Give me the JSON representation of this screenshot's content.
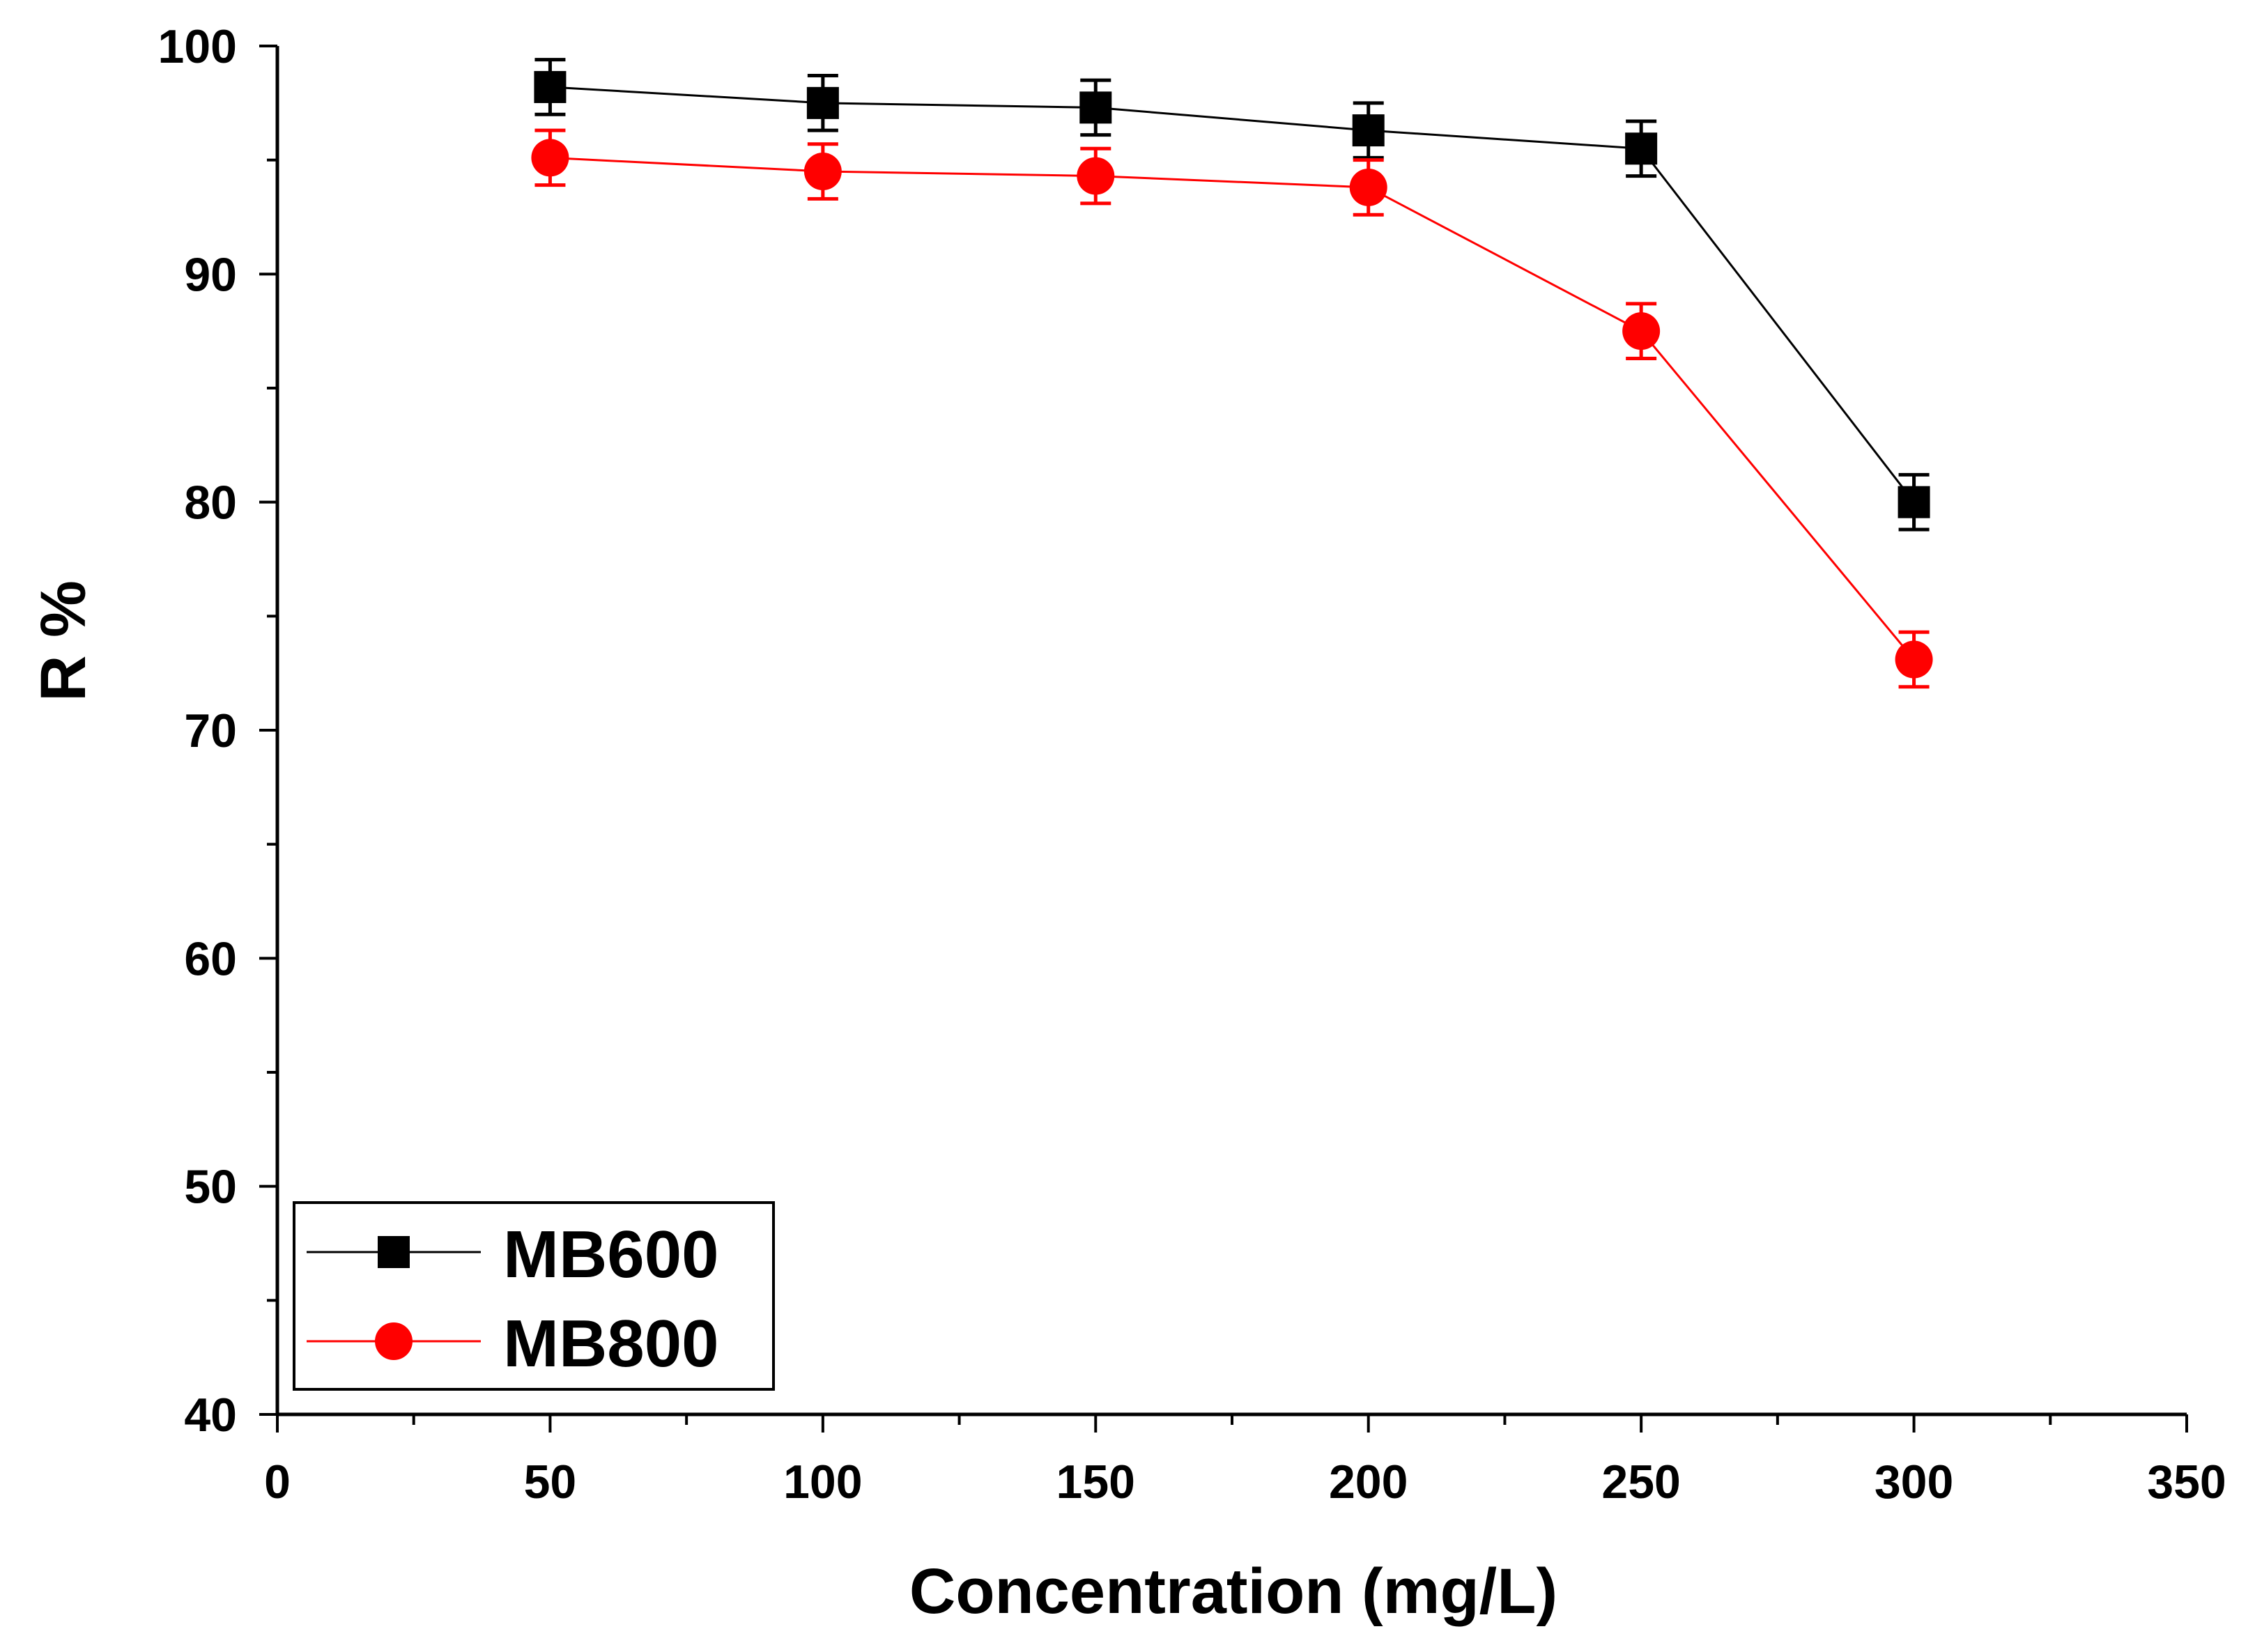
{
  "chart_data": {
    "type": "line",
    "title": "",
    "xlabel": "Concentration (mg/L)",
    "ylabel": "R %",
    "xlim": [
      0,
      350
    ],
    "ylim": [
      40,
      100
    ],
    "x_ticks": [
      0,
      50,
      100,
      150,
      200,
      250,
      300,
      350
    ],
    "y_ticks": [
      40,
      50,
      60,
      70,
      80,
      90,
      100
    ],
    "x_tick_labels": [
      "0",
      "50",
      "100",
      "150",
      "200",
      "250",
      "300",
      "350"
    ],
    "y_tick_labels": [
      "40",
      "50",
      "60",
      "70",
      "80",
      "90",
      "100"
    ],
    "grid": false,
    "legend_position": "bottom-left",
    "x": [
      50,
      100,
      150,
      200,
      250,
      300
    ],
    "series": [
      {
        "name": "MB600",
        "color": "#000000",
        "marker": "square",
        "values": [
          98.2,
          97.5,
          97.3,
          96.3,
          95.5,
          80.0
        ],
        "errors": [
          1.2,
          1.2,
          1.2,
          1.2,
          1.2,
          1.2
        ]
      },
      {
        "name": "MB800",
        "color": "#ff0000",
        "marker": "circle",
        "values": [
          95.1,
          94.5,
          94.3,
          93.8,
          87.5,
          73.1
        ],
        "errors": [
          1.2,
          1.2,
          1.2,
          1.2,
          1.2,
          1.2
        ]
      }
    ]
  }
}
